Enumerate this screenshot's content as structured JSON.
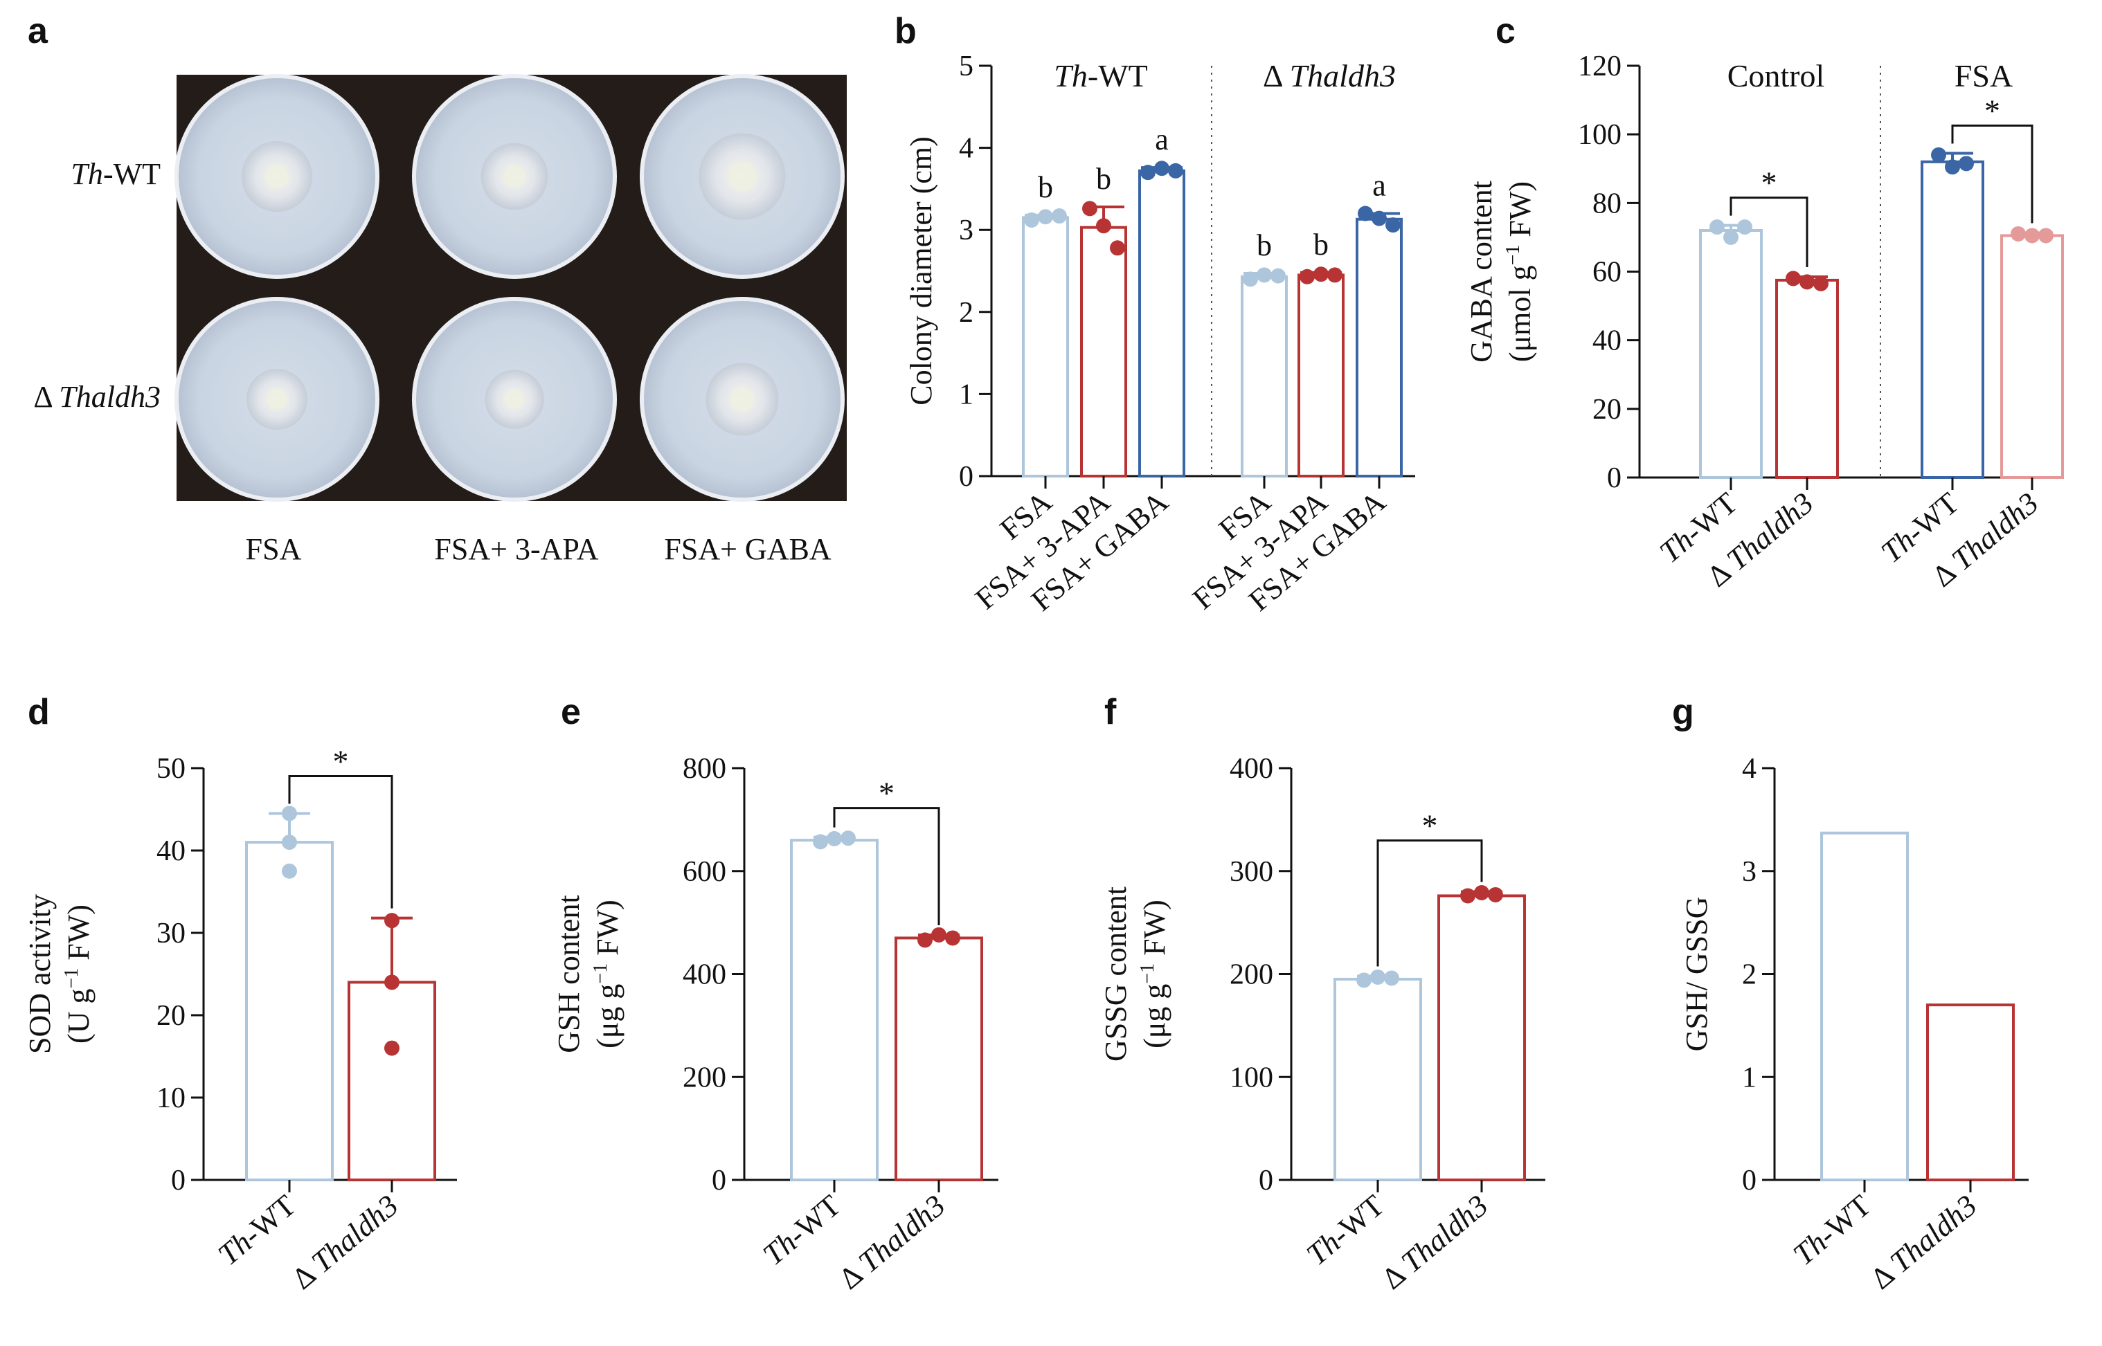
{
  "figure": {
    "panel_letters": [
      "a",
      "b",
      "c",
      "d",
      "e",
      "f",
      "g"
    ]
  },
  "panel_a": {
    "row_labels": [
      {
        "italic": "Th",
        "rest": "-WT"
      },
      {
        "italic": "Thaldh3",
        "prefix": "Δ "
      }
    ],
    "col_labels": [
      "FSA",
      "FSA+ 3-APA",
      "FSA+ GABA"
    ],
    "colony_relative_size": [
      [
        0.36,
        0.34,
        0.44
      ],
      [
        0.31,
        0.3,
        0.37
      ]
    ],
    "colors": {
      "background": "#231c18",
      "dish": "#c9d4e2",
      "dish_rim": "#ebeef3",
      "colony": "#e2e5ea"
    }
  },
  "chart_data": [
    {
      "panel": "b",
      "type": "bar",
      "ylabel": "Colony diameter (cm)",
      "ylim": [
        0,
        5
      ],
      "yticks": [
        0,
        1,
        2,
        3,
        4,
        5
      ],
      "groups": [
        {
          "title_italic": "Th",
          "title_rest": "-WT",
          "title_prefix": ""
        },
        {
          "title_italic": "Thaldh3",
          "title_rest": "",
          "title_prefix": "Δ "
        }
      ],
      "categories": [
        "FSA",
        "FSA+ 3-APA",
        "FSA+ GABA",
        "FSA",
        "FSA+ 3-APA",
        "FSA+ GABA"
      ],
      "values": [
        3.15,
        3.03,
        3.72,
        2.43,
        2.45,
        3.13
      ],
      "errors": [
        0.03,
        0.25,
        0.04,
        0.04,
        0.03,
        0.07
      ],
      "points": [
        [
          3.12,
          3.16,
          3.17
        ],
        [
          3.26,
          3.05,
          2.78
        ],
        [
          3.7,
          3.75,
          3.72
        ],
        [
          2.4,
          2.45,
          2.44
        ],
        [
          2.43,
          2.46,
          2.45
        ],
        [
          3.2,
          3.14,
          3.06
        ]
      ],
      "significance_letters": [
        "b",
        "b",
        "a",
        "b",
        "b",
        "a"
      ],
      "colors": [
        "#aec6dc",
        "#b83434",
        "#3a66a6",
        "#aec6dc",
        "#b83434",
        "#3a66a6"
      ]
    },
    {
      "panel": "c",
      "type": "bar",
      "ylabel_line1": "GABA content",
      "ylabel_line2_pre": "(μmol g",
      "ylabel_sup": "−1",
      "ylabel_line2_post": " FW)",
      "ylim": [
        0,
        120
      ],
      "yticks": [
        0,
        20,
        40,
        60,
        80,
        100,
        120
      ],
      "groups": [
        "Control",
        "FSA"
      ],
      "categories": [
        {
          "italic": "Th",
          "rest": "-WT",
          "prefix": ""
        },
        {
          "italic": "Thaldh3",
          "rest": "",
          "prefix": "Δ "
        },
        {
          "italic": "Th",
          "rest": "-WT",
          "prefix": ""
        },
        {
          "italic": "Thaldh3",
          "rest": "",
          "prefix": "Δ "
        }
      ],
      "values": [
        72,
        57.5,
        92,
        70.5
      ],
      "errors": [
        1.5,
        1.0,
        2.5,
        0.8
      ],
      "points": [
        [
          73,
          70,
          73
        ],
        [
          58,
          57,
          56.5
        ],
        [
          94,
          90.5,
          91.5
        ],
        [
          71,
          70.5,
          70.5
        ]
      ],
      "significance": [
        {
          "pair": [
            0,
            1
          ],
          "label": "*"
        },
        {
          "pair": [
            2,
            3
          ],
          "label": "*"
        }
      ],
      "colors": [
        "#aec6dc",
        "#b83434",
        "#3a66a6",
        "#e59a9a"
      ]
    },
    {
      "panel": "d",
      "type": "bar",
      "ylabel_line1": "SOD activity",
      "ylabel_line2_pre": "(U g",
      "ylabel_sup": "−1",
      "ylabel_line2_post": " FW)",
      "ylim": [
        0,
        50
      ],
      "yticks": [
        0,
        10,
        20,
        30,
        40,
        50
      ],
      "categories": [
        {
          "italic": "Th",
          "rest": "-WT",
          "prefix": ""
        },
        {
          "italic": "Thaldh3",
          "rest": "",
          "prefix": "Δ "
        }
      ],
      "values": [
        41,
        24
      ],
      "errors": [
        3.5,
        7.8
      ],
      "points": [
        [
          44.5,
          41,
          37.5
        ],
        [
          31.5,
          24,
          16
        ]
      ],
      "significance": [
        {
          "pair": [
            0,
            1
          ],
          "label": "*"
        }
      ],
      "colors": [
        "#aec6dc",
        "#b83434"
      ]
    },
    {
      "panel": "e",
      "type": "bar",
      "ylabel_line1": "GSH content",
      "ylabel_line2_pre": "(μg g",
      "ylabel_sup": "−1",
      "ylabel_line2_post": " FW)",
      "ylim": [
        0,
        800
      ],
      "yticks": [
        0,
        200,
        400,
        600,
        800
      ],
      "categories": [
        {
          "italic": "Th",
          "rest": "-WT",
          "prefix": ""
        },
        {
          "italic": "Thaldh3",
          "rest": "",
          "prefix": "Δ "
        }
      ],
      "values": [
        660,
        470
      ],
      "errors": [
        6,
        6
      ],
      "points": [
        [
          657,
          663,
          664
        ],
        [
          466,
          476,
          470
        ]
      ],
      "significance": [
        {
          "pair": [
            0,
            1
          ],
          "label": "*"
        }
      ],
      "colors": [
        "#aec6dc",
        "#b83434"
      ]
    },
    {
      "panel": "f",
      "type": "bar",
      "ylabel_line1": "GSSG content",
      "ylabel_line2_pre": "(μg g",
      "ylabel_sup": "−1",
      "ylabel_line2_post": " FW)",
      "ylim": [
        0,
        400
      ],
      "yticks": [
        0,
        100,
        200,
        300,
        400
      ],
      "categories": [
        {
          "italic": "Th",
          "rest": "-WT",
          "prefix": ""
        },
        {
          "italic": "Thaldh3",
          "rest": "",
          "prefix": "Δ "
        }
      ],
      "values": [
        195,
        276
      ],
      "errors": [
        3,
        4
      ],
      "points": [
        [
          194,
          197,
          196
        ],
        [
          276,
          279,
          277
        ]
      ],
      "significance": [
        {
          "pair": [
            0,
            1
          ],
          "label": "*"
        }
      ],
      "colors": [
        "#aec6dc",
        "#b83434"
      ]
    },
    {
      "panel": "g",
      "type": "bar",
      "ylabel": "GSH/ GSSG",
      "ylim": [
        0,
        4
      ],
      "yticks": [
        0,
        1,
        2,
        3,
        4
      ],
      "categories": [
        {
          "italic": "Th",
          "rest": "-WT",
          "prefix": ""
        },
        {
          "italic": "Thaldh3",
          "rest": "",
          "prefix": "Δ "
        }
      ],
      "values": [
        3.37,
        1.7
      ],
      "colors": [
        "#aec6dc",
        "#b83434"
      ]
    }
  ]
}
